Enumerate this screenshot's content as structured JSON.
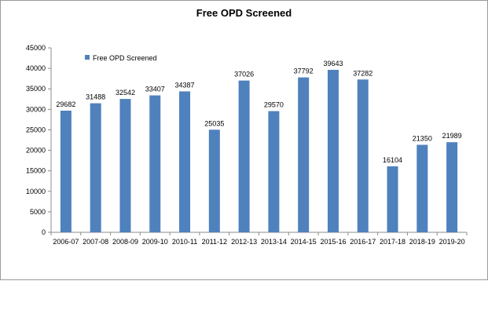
{
  "chart_data": {
    "type": "bar",
    "title": "Free OPD Screened",
    "xlabel": "",
    "ylabel": "",
    "categories": [
      "2006-07",
      "2007-08",
      "2008-09",
      "2009-10",
      "2010-11",
      "2011-12",
      "2012-13",
      "2013-14",
      "2014-15",
      "2015-16",
      "2016-17",
      "2017-18",
      "2018-19",
      "2019-20"
    ],
    "series": [
      {
        "name": "Free OPD Screened",
        "values": [
          29682,
          31488,
          32542,
          33407,
          34387,
          25035,
          37026,
          29570,
          37792,
          39643,
          37282,
          16104,
          21350,
          21989
        ]
      }
    ],
    "ylim": [
      0,
      45000
    ],
    "yticks": [
      0,
      5000,
      10000,
      15000,
      20000,
      25000,
      30000,
      35000,
      40000,
      45000
    ],
    "grid": false,
    "legend": "top-left",
    "colors": {
      "bar": "#4f81bd",
      "axis": "#8c8c8c"
    }
  }
}
